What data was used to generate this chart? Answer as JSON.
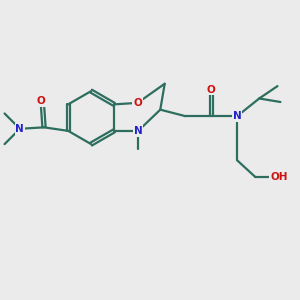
{
  "bg_color": "#ebebeb",
  "bond_color": "#2d6e5e",
  "N_color": "#2222cc",
  "O_color": "#cc1111",
  "lw": 1.6,
  "dbo": 0.055,
  "xlim": [
    0,
    10
  ],
  "ylim": [
    0,
    10
  ]
}
